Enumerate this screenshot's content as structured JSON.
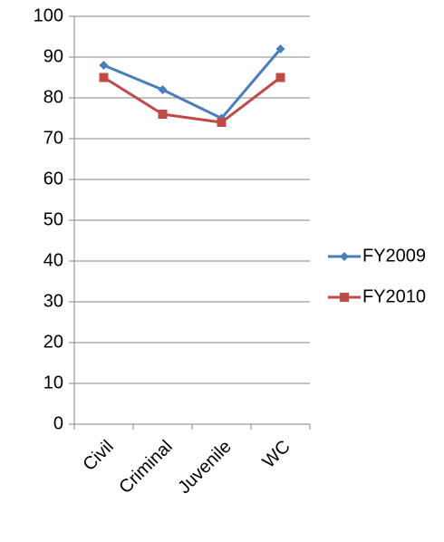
{
  "chart_data": {
    "type": "line",
    "categories": [
      "Civil",
      "Criminal",
      "Juvenile",
      "WC"
    ],
    "series": [
      {
        "name": "FY2009",
        "color": "#4a7ebb",
        "values": [
          88,
          82,
          75,
          92
        ]
      },
      {
        "name": "FY2010",
        "color": "#be4b48",
        "values": [
          85,
          76,
          74,
          85
        ]
      }
    ],
    "ylim": [
      0,
      100
    ],
    "yticks": [
      0,
      10,
      20,
      30,
      40,
      50,
      60,
      70,
      80,
      90,
      100
    ],
    "grid": true,
    "legend": "right"
  }
}
